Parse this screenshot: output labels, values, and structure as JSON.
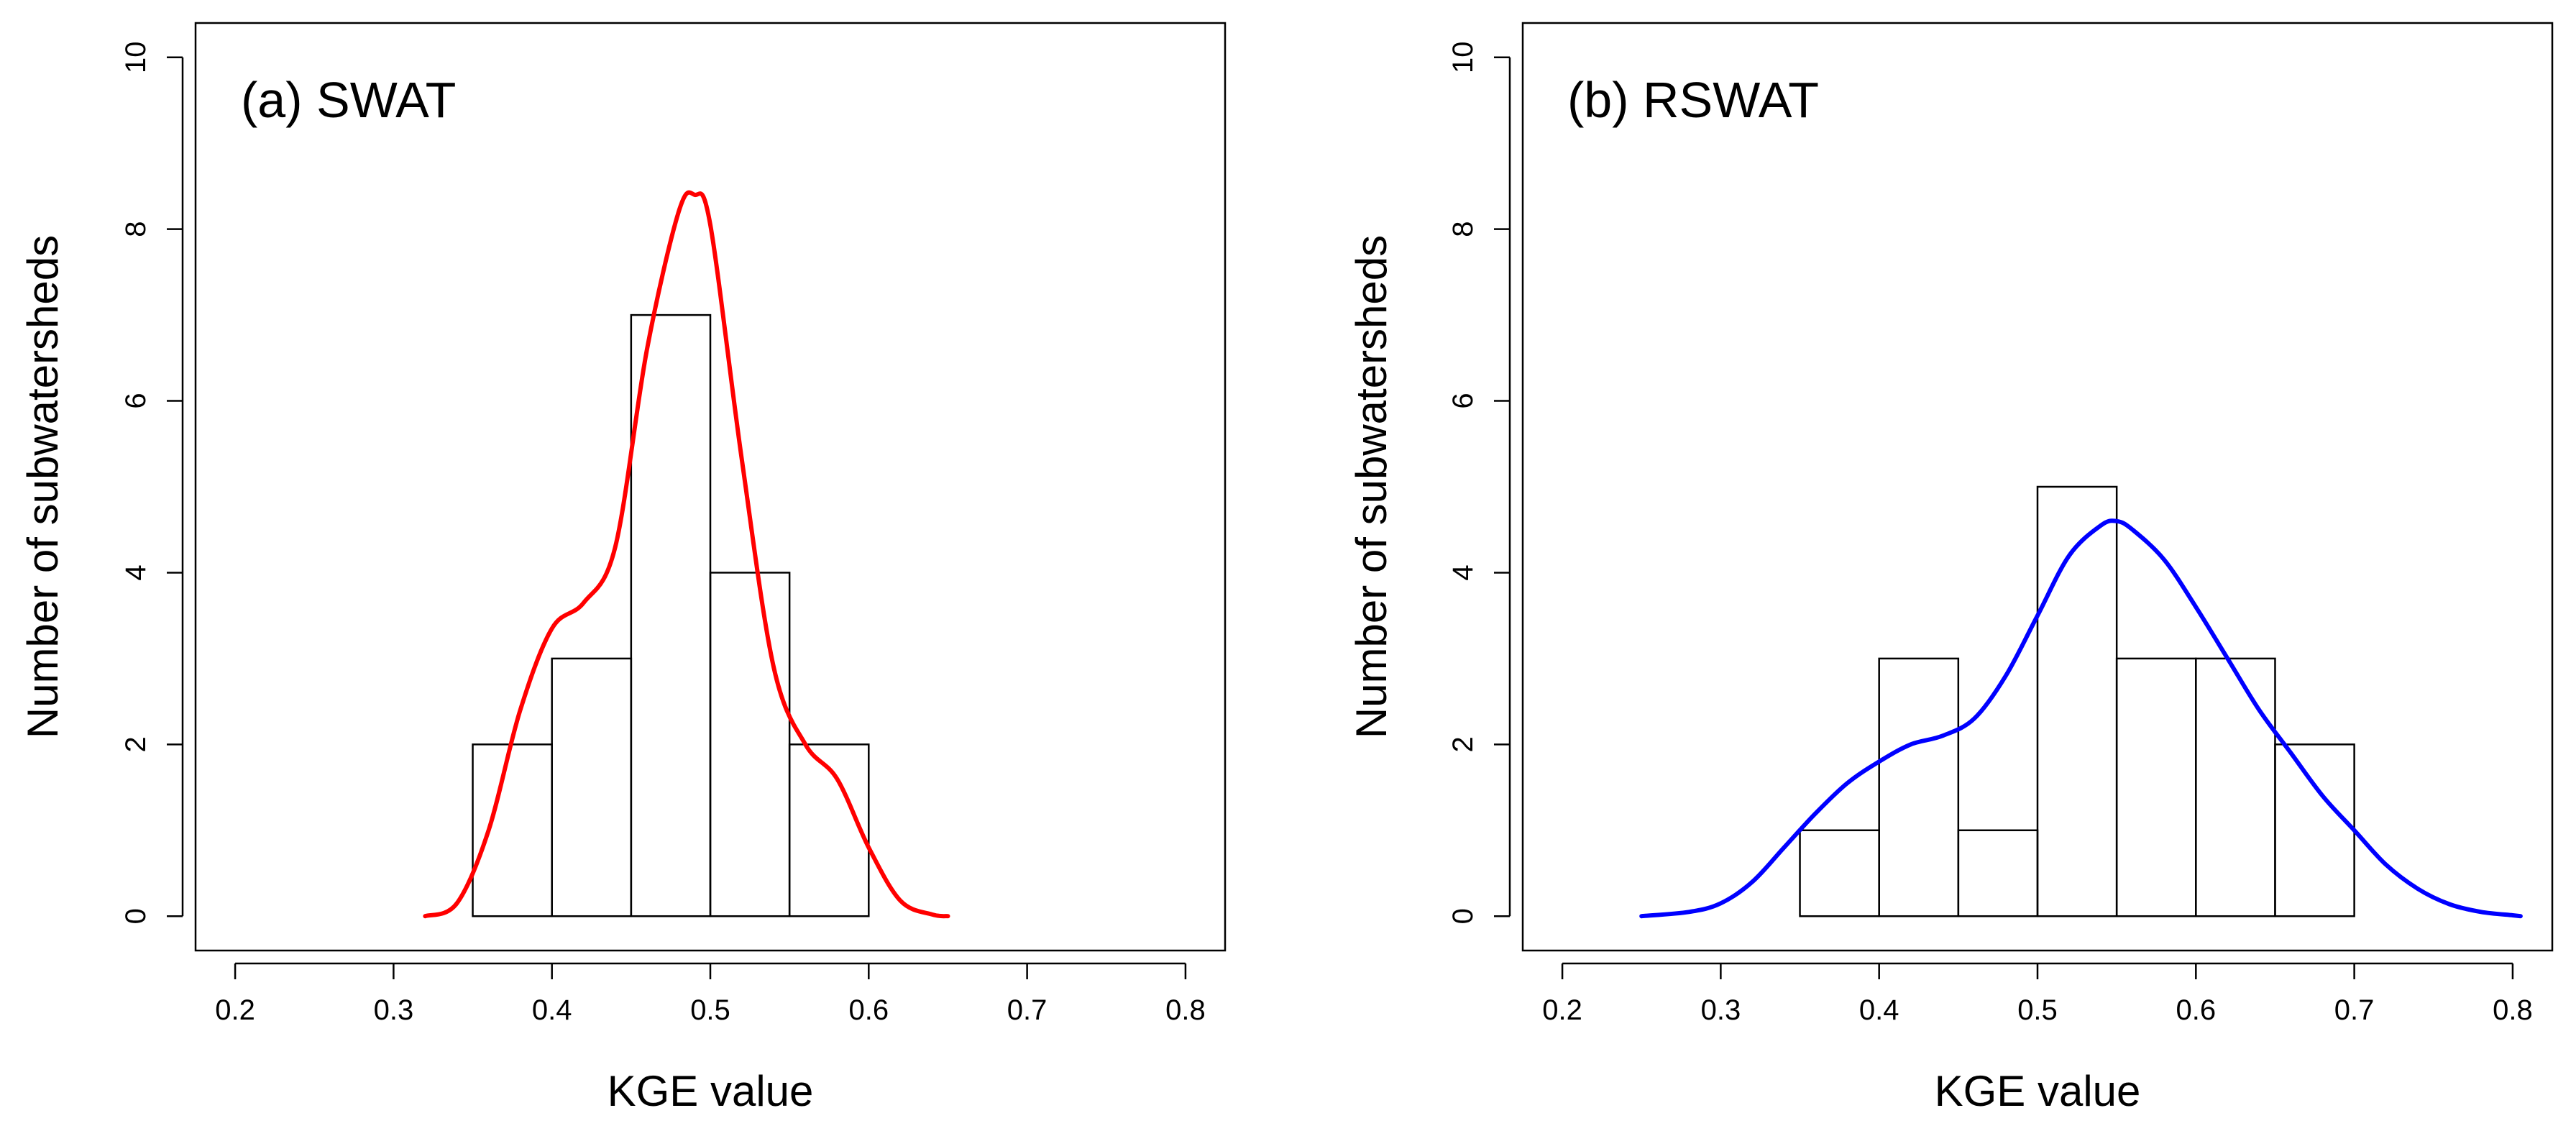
{
  "chart_data": [
    {
      "type": "histogram",
      "title": "(a) SWAT",
      "xlabel": "KGE value",
      "ylabel": "Number of subwatersheds",
      "xlim": [
        0.175,
        0.825
      ],
      "ylim": [
        -0.4,
        10.4
      ],
      "xticks": [
        "0.2",
        "0.3",
        "0.4",
        "0.5",
        "0.6",
        "0.7",
        "0.8"
      ],
      "yticks": [
        "0",
        "2",
        "4",
        "6",
        "8",
        "10"
      ],
      "bins": [
        {
          "start": 0.35,
          "end": 0.4,
          "count": 2
        },
        {
          "start": 0.4,
          "end": 0.45,
          "count": 3
        },
        {
          "start": 0.45,
          "end": 0.5,
          "count": 7
        },
        {
          "start": 0.5,
          "end": 0.55,
          "count": 4
        },
        {
          "start": 0.55,
          "end": 0.6,
          "count": 2
        }
      ],
      "density_curve": {
        "color": "#ff0000",
        "x": [
          0.32,
          0.34,
          0.36,
          0.38,
          0.4,
          0.42,
          0.44,
          0.46,
          0.48,
          0.49,
          0.5,
          0.52,
          0.54,
          0.56,
          0.58,
          0.6,
          0.62,
          0.64,
          0.65
        ],
        "y": [
          0.0,
          0.15,
          1.0,
          2.4,
          3.35,
          3.65,
          4.3,
          6.6,
          8.2,
          8.4,
          8.05,
          5.3,
          2.9,
          2.0,
          1.6,
          0.8,
          0.18,
          0.02,
          0.0
        ]
      }
    },
    {
      "type": "histogram",
      "title": "(b) RSWAT",
      "xlabel": "KGE value",
      "ylabel": "Number of subwatersheds",
      "xlim": [
        0.175,
        0.825
      ],
      "ylim": [
        -0.4,
        10.4
      ],
      "xticks": [
        "0.2",
        "0.3",
        "0.4",
        "0.5",
        "0.6",
        "0.7",
        "0.8"
      ],
      "yticks": [
        "0",
        "2",
        "4",
        "6",
        "8",
        "10"
      ],
      "bins": [
        {
          "start": 0.35,
          "end": 0.4,
          "count": 1
        },
        {
          "start": 0.4,
          "end": 0.45,
          "count": 3
        },
        {
          "start": 0.45,
          "end": 0.5,
          "count": 1
        },
        {
          "start": 0.5,
          "end": 0.55,
          "count": 5
        },
        {
          "start": 0.55,
          "end": 0.6,
          "count": 3
        },
        {
          "start": 0.6,
          "end": 0.65,
          "count": 3
        },
        {
          "start": 0.65,
          "end": 0.7,
          "count": 2
        }
      ],
      "density_curve": {
        "color": "#0000ff",
        "x": [
          0.25,
          0.28,
          0.3,
          0.32,
          0.34,
          0.36,
          0.38,
          0.4,
          0.42,
          0.44,
          0.46,
          0.48,
          0.5,
          0.52,
          0.54,
          0.55,
          0.56,
          0.58,
          0.6,
          0.62,
          0.64,
          0.66,
          0.68,
          0.7,
          0.72,
          0.74,
          0.76,
          0.78,
          0.8,
          0.805
        ],
        "y": [
          0.0,
          0.05,
          0.15,
          0.4,
          0.8,
          1.2,
          1.55,
          1.8,
          2.0,
          2.1,
          2.3,
          2.8,
          3.5,
          4.2,
          4.55,
          4.6,
          4.5,
          4.15,
          3.6,
          3.0,
          2.4,
          1.9,
          1.4,
          1.0,
          0.6,
          0.32,
          0.14,
          0.05,
          0.01,
          0.0
        ]
      }
    }
  ]
}
